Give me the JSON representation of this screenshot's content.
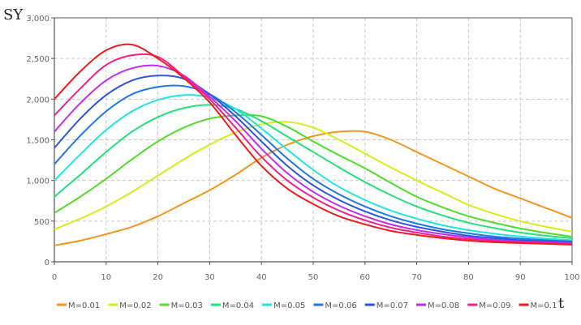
{
  "chart_data": {
    "type": "line",
    "title": "",
    "ylabel": "SY",
    "xlabel": "t",
    "xlim": [
      0,
      100
    ],
    "ylim": [
      0,
      3000
    ],
    "grid": true,
    "legend_position": "bottom",
    "x_ticks": [
      "0",
      "10",
      "20",
      "30",
      "40",
      "50",
      "60",
      "70",
      "80",
      "90",
      "100"
    ],
    "y_ticks": [
      "0",
      "500",
      "1,000",
      "1,500",
      "2,000",
      "2,500",
      "3,000"
    ],
    "x": [
      0,
      5,
      10,
      15,
      20,
      25,
      30,
      35,
      40,
      45,
      50,
      55,
      60,
      65,
      70,
      75,
      80,
      85,
      90,
      95,
      100
    ],
    "series": [
      {
        "name": "M=0.01",
        "color": "#f7941d",
        "values": [
          200,
          260,
          340,
          430,
          560,
          720,
          880,
          1070,
          1280,
          1440,
          1545,
          1600,
          1600,
          1500,
          1350,
          1200,
          1050,
          900,
          780,
          660,
          540
        ]
      },
      {
        "name": "M=0.02",
        "color": "#d6ec1c",
        "values": [
          400,
          530,
          680,
          860,
          1060,
          1260,
          1440,
          1590,
          1690,
          1720,
          1650,
          1500,
          1330,
          1160,
          1000,
          850,
          700,
          590,
          500,
          430,
          370
        ]
      },
      {
        "name": "M=0.03",
        "color": "#52dc2a",
        "values": [
          600,
          800,
          1020,
          1260,
          1480,
          1650,
          1760,
          1800,
          1790,
          1660,
          1480,
          1310,
          1150,
          970,
          800,
          670,
          560,
          480,
          410,
          355,
          310
        ]
      },
      {
        "name": "M=0.04",
        "color": "#22e07a",
        "values": [
          800,
          1070,
          1350,
          1600,
          1780,
          1890,
          1930,
          1880,
          1730,
          1540,
          1350,
          1160,
          980,
          820,
          680,
          570,
          480,
          415,
          360,
          320,
          290
        ]
      },
      {
        "name": "M=0.05",
        "color": "#1fe4e4",
        "values": [
          1000,
          1320,
          1620,
          1850,
          1990,
          2050,
          2020,
          1880,
          1640,
          1380,
          1130,
          920,
          760,
          630,
          530,
          450,
          390,
          345,
          310,
          285,
          265
        ]
      },
      {
        "name": "M=0.06",
        "color": "#1e78e6",
        "values": [
          1200,
          1550,
          1850,
          2060,
          2150,
          2160,
          2060,
          1840,
          1560,
          1270,
          1020,
          830,
          680,
          560,
          470,
          400,
          350,
          310,
          285,
          265,
          250
        ]
      },
      {
        "name": "M=0.07",
        "color": "#2a55e0",
        "values": [
          1400,
          1760,
          2050,
          2230,
          2290,
          2250,
          2060,
          1790,
          1480,
          1180,
          940,
          760,
          620,
          510,
          430,
          370,
          320,
          290,
          265,
          250,
          240
        ]
      },
      {
        "name": "M=0.08",
        "color": "#c22cf0",
        "values": [
          1600,
          1950,
          2230,
          2380,
          2410,
          2290,
          2030,
          1730,
          1390,
          1090,
          860,
          690,
          560,
          460,
          390,
          340,
          300,
          270,
          250,
          240,
          230
        ]
      },
      {
        "name": "M=0.09",
        "color": "#f0208c",
        "values": [
          1800,
          2130,
          2420,
          2540,
          2520,
          2280,
          2000,
          1650,
          1290,
          1000,
          790,
          630,
          510,
          420,
          360,
          310,
          280,
          255,
          240,
          230,
          220
        ]
      },
      {
        "name": "M=0.1",
        "color": "#f01a1a",
        "values": [
          2000,
          2340,
          2600,
          2670,
          2500,
          2260,
          1960,
          1560,
          1180,
          900,
          710,
          560,
          460,
          380,
          330,
          290,
          260,
          240,
          230,
          220,
          210
        ]
      }
    ]
  }
}
